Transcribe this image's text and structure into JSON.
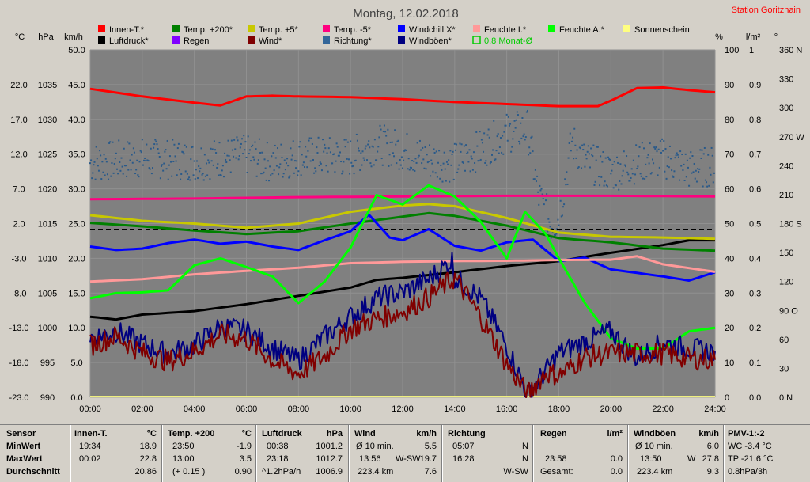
{
  "station": "Station Goritzhain",
  "chart_data": {
    "type": "line",
    "title": "Montag, 12.02.2018",
    "grid": true,
    "x_ticks": [
      "00:00",
      "02:00",
      "04:00",
      "06:00",
      "08:00",
      "10:00",
      "12:00",
      "14:00",
      "16:00",
      "18:00",
      "20:00",
      "22:00",
      "24:00"
    ],
    "x_range_hours": [
      0,
      24
    ],
    "axes": {
      "temp": {
        "unit": "°C",
        "range": [
          -23,
          27
        ],
        "ticks": [
          "22.0",
          "17.0",
          "12.0",
          "7.0",
          "2.0",
          "-3.0",
          "-8.0",
          "-13.0",
          "-18.0",
          "-23.0"
        ]
      },
      "pressure": {
        "unit": "hPa",
        "range": [
          990,
          1040
        ],
        "ticks": [
          "1035",
          "1030",
          "1025",
          "1020",
          "1015",
          "1010",
          "1005",
          "1000",
          "995",
          "990"
        ]
      },
      "speed": {
        "unit": "km/h",
        "range": [
          0,
          50
        ],
        "ticks": [
          "50.0",
          "45.0",
          "40.0",
          "35.0",
          "30.0",
          "25.0",
          "20.0",
          "15.0",
          "10.0",
          "5.0",
          "0.0"
        ]
      },
      "percent": {
        "unit": "%",
        "range": [
          0,
          100
        ],
        "ticks": [
          "100",
          "90",
          "80",
          "70",
          "60",
          "50",
          "40",
          "30",
          "20",
          "10",
          "0"
        ]
      },
      "rain": {
        "unit": "l/m²",
        "range": [
          0,
          1
        ],
        "ticks": [
          "1",
          "0.9",
          "0.8",
          "0.7",
          "0.6",
          "0.5",
          "0.4",
          "0.3",
          "0.2",
          "0.1",
          "0.0"
        ]
      },
      "direction": {
        "unit": "°",
        "range": [
          0,
          360
        ],
        "ticks": [
          "360 N",
          "330",
          "300",
          "270 W",
          "240",
          "210",
          "180 S",
          "150",
          "120",
          "90 O",
          "60",
          "30",
          "0 N"
        ]
      }
    },
    "legend": [
      {
        "name": "Innen-T.*",
        "color": "#ff0000"
      },
      {
        "name": "Temp. +200*",
        "color": "#008000"
      },
      {
        "name": "Temp. +5*",
        "color": "#c8c800"
      },
      {
        "name": "Temp. -5*",
        "color": "#ff0080"
      },
      {
        "name": "Windchill X*",
        "color": "#0000ff"
      },
      {
        "name": "Feuchte I.*",
        "color": "#ff9999"
      },
      {
        "name": "Feuchte A.*",
        "color": "#00ff00"
      },
      {
        "name": "Sonnenschein",
        "color": "#ffff80"
      },
      {
        "name": "Luftdruck*",
        "color": "#000000"
      },
      {
        "name": "Regen",
        "color": "#8000ff"
      },
      {
        "name": "Wind*",
        "color": "#800000"
      },
      {
        "name": "Richtung*",
        "color": "#336699"
      },
      {
        "name": "Windböen*",
        "color": "#000080"
      },
      {
        "name": "0.8 Monat-Ø",
        "color": "#00cc00",
        "text_color": "#00cc00",
        "outline": true
      }
    ],
    "series": [
      {
        "name": "Innen-T.*",
        "axis": "temp",
        "color": "#ff0000",
        "width": 3,
        "points": [
          [
            0,
            21.4
          ],
          [
            2,
            20.3
          ],
          [
            4,
            19.4
          ],
          [
            5,
            19.0
          ],
          [
            6,
            20.3
          ],
          [
            7,
            20.4
          ],
          [
            8,
            20.3
          ],
          [
            10,
            20.2
          ],
          [
            12,
            19.9
          ],
          [
            14,
            19.5
          ],
          [
            16,
            19.2
          ],
          [
            18,
            18.9
          ],
          [
            19.5,
            18.9
          ],
          [
            20,
            19.7
          ],
          [
            21,
            21.5
          ],
          [
            22,
            21.6
          ],
          [
            23,
            21.2
          ],
          [
            24,
            20.9
          ]
        ]
      },
      {
        "name": "Luftdruck*",
        "axis": "pressure",
        "color": "#000000",
        "width": 3,
        "points": [
          [
            0,
            1001.6
          ],
          [
            1,
            1001.2
          ],
          [
            2,
            1001.9
          ],
          [
            4,
            1002.4
          ],
          [
            6,
            1003.4
          ],
          [
            8,
            1004.6
          ],
          [
            10,
            1005.8
          ],
          [
            11,
            1006.9
          ],
          [
            12,
            1007.2
          ],
          [
            14,
            1008.0
          ],
          [
            16,
            1008.9
          ],
          [
            18,
            1009.6
          ],
          [
            20,
            1010.8
          ],
          [
            22,
            1011.9
          ],
          [
            23,
            1012.6
          ],
          [
            24,
            1012.6
          ]
        ]
      },
      {
        "name": "Temp. +200*",
        "axis": "temp",
        "color": "#008000",
        "width": 3,
        "points": [
          [
            0,
            2.1
          ],
          [
            2,
            1.6
          ],
          [
            4,
            1.0
          ],
          [
            6,
            0.5
          ],
          [
            8,
            0.9
          ],
          [
            10,
            2.0
          ],
          [
            12,
            3.0
          ],
          [
            13,
            3.5
          ],
          [
            14,
            3.1
          ],
          [
            16,
            1.7
          ],
          [
            18,
            -0.1
          ],
          [
            20,
            -0.7
          ],
          [
            22,
            -1.6
          ],
          [
            24,
            -1.9
          ]
        ]
      },
      {
        "name": "Temp. +5*",
        "axis": "temp",
        "color": "#c8c800",
        "width": 3,
        "points": [
          [
            0,
            3.2
          ],
          [
            2,
            2.4
          ],
          [
            4,
            2.0
          ],
          [
            6,
            1.4
          ],
          [
            8,
            2.0
          ],
          [
            10,
            3.7
          ],
          [
            12,
            4.6
          ],
          [
            13,
            4.8
          ],
          [
            14,
            4.5
          ],
          [
            16,
            2.8
          ],
          [
            18,
            0.7
          ],
          [
            20,
            0.1
          ],
          [
            22,
            0.0
          ],
          [
            24,
            -0.2
          ]
        ]
      },
      {
        "name": "Temp. -5*",
        "axis": "temp",
        "color": "#ff0080",
        "width": 3,
        "points": [
          [
            0,
            5.5
          ],
          [
            4,
            5.6
          ],
          [
            8,
            5.8
          ],
          [
            12,
            5.9
          ],
          [
            16,
            6.0
          ],
          [
            20,
            6.0
          ],
          [
            24,
            5.9
          ]
        ]
      },
      {
        "name": "Windchill X*",
        "axis": "temp",
        "color": "#0000ff",
        "width": 3,
        "points": [
          [
            0,
            -1.3
          ],
          [
            1,
            -1.8
          ],
          [
            2,
            -1.6
          ],
          [
            3,
            -0.8
          ],
          [
            4,
            -0.3
          ],
          [
            5,
            -0.9
          ],
          [
            6,
            -0.6
          ],
          [
            7,
            -1.3
          ],
          [
            8,
            -1.8
          ],
          [
            9,
            -0.4
          ],
          [
            10,
            0.9
          ],
          [
            10.7,
            3.3
          ],
          [
            11.5,
            0.0
          ],
          [
            12,
            -0.4
          ],
          [
            13,
            1.2
          ],
          [
            14,
            -1.2
          ],
          [
            15,
            -1.9
          ],
          [
            16,
            -0.7
          ],
          [
            17,
            -0.3
          ],
          [
            18,
            -3.4
          ],
          [
            19,
            -2.9
          ],
          [
            20,
            -4.6
          ],
          [
            22,
            -5.6
          ],
          [
            23,
            -6.2
          ],
          [
            24,
            -5.0
          ]
        ]
      },
      {
        "name": "Feuchte I.*",
        "axis": "percent",
        "color": "#ff9999",
        "width": 3,
        "points": [
          [
            0,
            33.3
          ],
          [
            2,
            34.0
          ],
          [
            4,
            35.4
          ],
          [
            6,
            36.4
          ],
          [
            8,
            37.3
          ],
          [
            10,
            38.6
          ],
          [
            12,
            39.0
          ],
          [
            14,
            39.2
          ],
          [
            16,
            39.3
          ],
          [
            18,
            39.5
          ],
          [
            20,
            39.6
          ],
          [
            21,
            40.6
          ],
          [
            22,
            38.3
          ],
          [
            24,
            36.1
          ]
        ]
      },
      {
        "name": "Feuchte A.*",
        "axis": "percent",
        "color": "#00ff00",
        "width": 3,
        "points": [
          [
            0,
            28.5
          ],
          [
            1,
            30.0
          ],
          [
            2,
            30.2
          ],
          [
            3,
            30.8
          ],
          [
            4,
            38.0
          ],
          [
            5,
            40.0
          ],
          [
            6,
            37.5
          ],
          [
            7,
            34.8
          ],
          [
            8,
            27.1
          ],
          [
            9,
            33.3
          ],
          [
            10,
            43.1
          ],
          [
            11,
            58.2
          ],
          [
            12,
            55.5
          ],
          [
            13,
            61.0
          ],
          [
            14,
            57.8
          ],
          [
            15,
            50.5
          ],
          [
            16,
            40.0
          ],
          [
            16.7,
            53.4
          ],
          [
            17.5,
            47.0
          ],
          [
            18,
            40.0
          ],
          [
            19,
            27.1
          ],
          [
            20,
            17.0
          ],
          [
            21,
            14.0
          ],
          [
            22,
            14.0
          ],
          [
            23,
            19.0
          ],
          [
            24,
            20.0
          ]
        ]
      },
      {
        "name": "Windböen*",
        "axis": "speed",
        "color": "#000080",
        "width": 2,
        "points": [
          [
            0,
            8.6
          ],
          [
            1,
            9.5
          ],
          [
            2,
            7.7
          ],
          [
            3,
            6.2
          ],
          [
            4,
            7.5
          ],
          [
            5,
            10.2
          ],
          [
            6,
            9.6
          ],
          [
            7,
            7.1
          ],
          [
            8,
            5.3
          ],
          [
            9,
            8.7
          ],
          [
            10,
            11.6
          ],
          [
            11,
            14.3
          ],
          [
            12,
            15.1
          ],
          [
            13,
            17.0
          ],
          [
            13.9,
            19.7
          ],
          [
            14,
            17.3
          ],
          [
            15,
            14.2
          ],
          [
            16,
            7.4
          ],
          [
            16.8,
            0.4
          ],
          [
            17.5,
            3.8
          ],
          [
            18,
            6.4
          ],
          [
            19,
            8.0
          ],
          [
            20,
            9.5
          ],
          [
            21,
            5.6
          ],
          [
            22,
            7.9
          ],
          [
            23,
            7.0
          ],
          [
            24,
            6.6
          ]
        ]
      },
      {
        "name": "Wind*",
        "axis": "speed",
        "color": "#800000",
        "width": 2,
        "points": [
          [
            0,
            7.5
          ],
          [
            1,
            8.8
          ],
          [
            2,
            6.4
          ],
          [
            3,
            5.2
          ],
          [
            4,
            6.6
          ],
          [
            5,
            9.0
          ],
          [
            6,
            8.4
          ],
          [
            7,
            5.3
          ],
          [
            8,
            3.4
          ],
          [
            9,
            5.9
          ],
          [
            10,
            9.9
          ],
          [
            11,
            11.3
          ],
          [
            12,
            12.3
          ],
          [
            13,
            14.4
          ],
          [
            14,
            17.2
          ],
          [
            15,
            11.5
          ],
          [
            16,
            4.8
          ],
          [
            16.8,
            0.4
          ],
          [
            17.5,
            3.6
          ],
          [
            18,
            3.1
          ],
          [
            19,
            5.8
          ],
          [
            20,
            6.3
          ],
          [
            21,
            6.3
          ],
          [
            22,
            6.3
          ],
          [
            23,
            5.6
          ],
          [
            24,
            5.4
          ]
        ]
      }
    ],
    "direction_trend": [
      [
        0,
        243
      ],
      [
        2,
        248
      ],
      [
        4,
        245
      ],
      [
        6,
        251
      ],
      [
        7,
        243
      ],
      [
        8,
        250
      ],
      [
        10,
        249
      ],
      [
        11,
        263
      ],
      [
        12,
        256
      ],
      [
        13,
        246
      ],
      [
        14,
        243
      ],
      [
        15,
        257
      ],
      [
        16,
        274
      ],
      [
        16.8,
        278
      ],
      [
        17.2,
        210
      ],
      [
        17.7,
        180
      ],
      [
        18,
        185
      ],
      [
        18.5,
        265
      ],
      [
        19,
        245
      ],
      [
        20,
        233
      ],
      [
        21,
        243
      ],
      [
        22,
        248
      ],
      [
        23,
        236
      ],
      [
        24,
        240
      ]
    ],
    "dashed_reference": {
      "axis": "speed",
      "value": 24.2
    },
    "sunshine_baseline": {
      "axis": "speed",
      "value": 0.1
    }
  },
  "stats": {
    "sensor": {
      "title": "Sensor",
      "rows": [
        "MinWert",
        "MaxWert",
        "Durchschnitt"
      ]
    },
    "innen": {
      "title": "Innen-T.",
      "unit": "°C",
      "min_time": "19:34",
      "min": "18.9",
      "max_time": "00:02",
      "max": "22.8",
      "avg": "20.86"
    },
    "temp200": {
      "title": "Temp. +200",
      "unit": "°C",
      "min_time": "23:50",
      "min": "-1.9",
      "max_time": "13:00",
      "max": "3.5",
      "avg_note": "(+ 0.15 )",
      "avg": "0.90"
    },
    "luftdruck": {
      "title": "Luftdruck",
      "unit": "hPa",
      "min_time": "00:38",
      "min": "1001.2",
      "max_time": "23:18",
      "max": "1012.7",
      "avg_note": "^1.2hPa/h",
      "avg": "1006.9"
    },
    "wind": {
      "title": "Wind",
      "unit": "km/h",
      "min_label": "Ø 10 min.",
      "min": "5.5",
      "max_time": "13:56",
      "max_dir": "W-SW",
      "max": "19.7",
      "avg_note": "223.4 km",
      "avg": "7.6"
    },
    "richtung": {
      "title": "Richtung",
      "min_time": "05:07",
      "min": "N",
      "max_time": "16:28",
      "max": "N",
      "avg": "W-SW"
    },
    "regen": {
      "title": "Regen",
      "unit": "l/m²",
      "max_time": "23:58",
      "max": "0.0",
      "avg_label": "Gesamt:",
      "avg": "0.0"
    },
    "windboeen": {
      "title": "Windböen",
      "unit": "km/h",
      "min_label": "Ø 10 min.",
      "min": "6.0",
      "max_time": "13:50",
      "max_dir": "W",
      "max": "27.8",
      "avg_note": "223.4 km",
      "avg": "9.3"
    },
    "pmv": {
      "title": "PMV-1:-2",
      "min": "WC -3.4 °C",
      "max": "TP -21.6 °C",
      "avg": "0.8hPa/3h"
    }
  }
}
